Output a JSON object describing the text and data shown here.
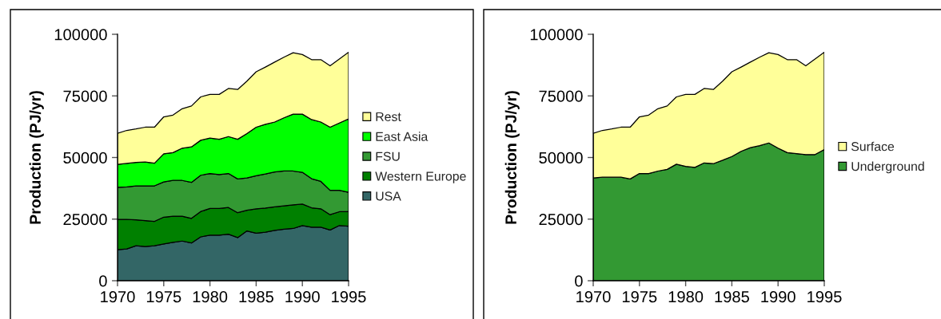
{
  "chart_data": [
    {
      "type": "area",
      "stacked": true,
      "ylabel": "Production (PJ/yr)",
      "x": [
        1970,
        1971,
        1972,
        1973,
        1974,
        1975,
        1976,
        1977,
        1978,
        1979,
        1980,
        1981,
        1982,
        1983,
        1984,
        1985,
        1986,
        1987,
        1988,
        1989,
        1990,
        1991,
        1992,
        1993,
        1994,
        1995
      ],
      "series": [
        {
          "name": "USA",
          "color": "#336666",
          "values": [
            12600,
            12900,
            14200,
            13900,
            14200,
            14900,
            15600,
            16100,
            15300,
            17800,
            18500,
            18500,
            18900,
            17500,
            20200,
            19300,
            19700,
            20400,
            20900,
            21200,
            22400,
            21700,
            21700,
            20600,
            22400,
            22100
          ]
        },
        {
          "name": "Western Europe",
          "color": "#008000",
          "values": [
            12300,
            12000,
            10500,
            10500,
            9900,
            10900,
            10600,
            10100,
            10000,
            10300,
            10800,
            10800,
            10800,
            10100,
            8400,
            9900,
            9800,
            9600,
            9500,
            9600,
            8700,
            7900,
            7500,
            6200,
            5600,
            5900
          ]
        },
        {
          "name": "FSU",
          "color": "#339933",
          "values": [
            13000,
            13200,
            13800,
            14100,
            14400,
            14300,
            14500,
            14500,
            14600,
            14700,
            14200,
            13800,
            13800,
            13700,
            13100,
            13400,
            13800,
            14100,
            14100,
            13700,
            12900,
            11800,
            11100,
            9900,
            8700,
            7900
          ]
        },
        {
          "name": "East Asia",
          "color": "#00ff00",
          "values": [
            9300,
            9500,
            9500,
            9700,
            9200,
            11400,
            11300,
            13100,
            14400,
            14200,
            14400,
            14300,
            15000,
            16100,
            18000,
            19700,
            20200,
            20300,
            21600,
            23100,
            23600,
            24000,
            24100,
            25600,
            27300,
            29800
          ]
        },
        {
          "name": "Rest",
          "color": "#ffff99",
          "values": [
            12600,
            13400,
            13600,
            14100,
            14600,
            15000,
            15200,
            16000,
            16600,
            17600,
            17700,
            18200,
            19500,
            20200,
            21300,
            22500,
            23200,
            24300,
            24600,
            24900,
            24200,
            24300,
            25300,
            24900,
            26000,
            27000
          ]
        }
      ],
      "xlim": [
        1970,
        1995
      ],
      "xticks": [
        1970,
        1975,
        1980,
        1985,
        1990,
        1995
      ],
      "ylim": [
        0,
        100000
      ],
      "yticks": [
        0,
        25000,
        50000,
        75000,
        100000
      ],
      "legend": "right"
    },
    {
      "type": "area",
      "stacked": true,
      "ylabel": "Production (PJ/yr)",
      "x": [
        1970,
        1971,
        1972,
        1973,
        1974,
        1975,
        1976,
        1977,
        1978,
        1979,
        1980,
        1981,
        1982,
        1983,
        1984,
        1985,
        1986,
        1987,
        1988,
        1989,
        1990,
        1991,
        1992,
        1993,
        1994,
        1995
      ],
      "series": [
        {
          "name": "Underground",
          "color": "#339933",
          "values": [
            41700,
            42000,
            42000,
            42000,
            41300,
            43500,
            43500,
            44500,
            45200,
            47300,
            46400,
            46000,
            47800,
            47500,
            48900,
            50400,
            52500,
            54000,
            54800,
            55900,
            53800,
            52000,
            51600,
            51200,
            51200,
            53200
          ]
        },
        {
          "name": "Surface",
          "color": "#ffff99",
          "values": [
            18100,
            19000,
            19600,
            20300,
            21000,
            23000,
            23700,
            25300,
            25700,
            27300,
            29200,
            29600,
            30200,
            30100,
            32100,
            34400,
            34200,
            34700,
            35900,
            36600,
            38000,
            37700,
            38100,
            36000,
            38800,
            39500
          ]
        }
      ],
      "xlim": [
        1970,
        1995
      ],
      "xticks": [
        1970,
        1975,
        1980,
        1985,
        1990,
        1995
      ],
      "ylim": [
        0,
        100000
      ],
      "yticks": [
        0,
        25000,
        50000,
        75000,
        100000
      ],
      "legend": "right"
    }
  ]
}
